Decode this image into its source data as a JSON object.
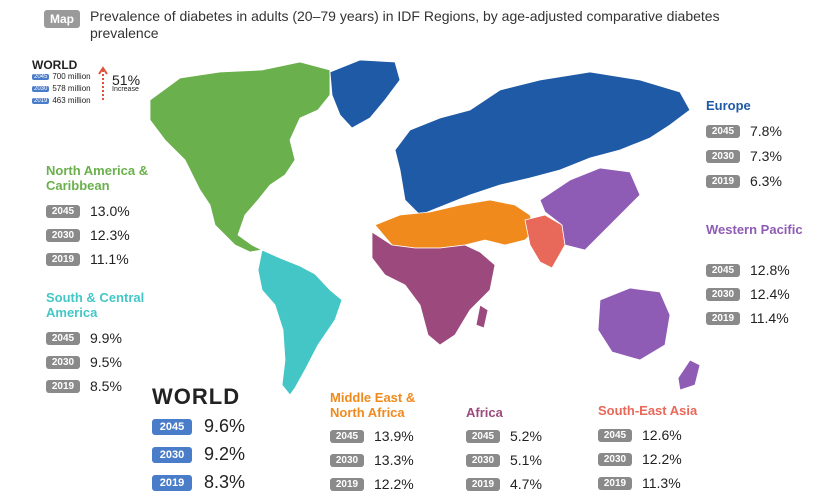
{
  "header": {
    "badge": "Map",
    "title": "Prevalence of diabetes in adults (20–79 years) in IDF Regions, by age-adjusted comparative diabetes prevalence"
  },
  "world_mini": {
    "title": "WORLD",
    "rows": [
      {
        "year": "2045",
        "value": "700 million"
      },
      {
        "year": "2030",
        "value": "578 million"
      },
      {
        "year": "2019",
        "value": "463 million"
      }
    ],
    "increase_pct": "51%",
    "increase_label": "Increase"
  },
  "regions": {
    "north_america": {
      "name": "North America & Caribbean",
      "color": "#6ab04c",
      "rows": [
        {
          "year": "2045",
          "value": "13.0%"
        },
        {
          "year": "2030",
          "value": "12.3%"
        },
        {
          "year": "2019",
          "value": "11.1%"
        }
      ]
    },
    "south_central_america": {
      "name": "South & Central America",
      "color": "#45c6c6",
      "rows": [
        {
          "year": "2045",
          "value": "9.9%"
        },
        {
          "year": "2030",
          "value": "9.5%"
        },
        {
          "year": "2019",
          "value": "8.5%"
        }
      ]
    },
    "europe": {
      "name": "Europe",
      "color": "#1f5aa6",
      "rows": [
        {
          "year": "2045",
          "value": "7.8%"
        },
        {
          "year": "2030",
          "value": "7.3%"
        },
        {
          "year": "2019",
          "value": "6.3%"
        }
      ]
    },
    "western_pacific": {
      "name": "Western Pacific",
      "color": "#8e5bb5",
      "rows": [
        {
          "year": "2045",
          "value": "12.8%"
        },
        {
          "year": "2030",
          "value": "12.4%"
        },
        {
          "year": "2019",
          "value": "11.4%"
        }
      ]
    },
    "mena": {
      "name": "Middle East & North Africa",
      "color": "#f08a1c",
      "rows": [
        {
          "year": "2045",
          "value": "13.9%"
        },
        {
          "year": "2030",
          "value": "13.3%"
        },
        {
          "year": "2019",
          "value": "12.2%"
        }
      ]
    },
    "africa": {
      "name": "Africa",
      "color": "#9c4a7d",
      "rows": [
        {
          "year": "2045",
          "value": "5.2%"
        },
        {
          "year": "2030",
          "value": "5.1%"
        },
        {
          "year": "2019",
          "value": "4.7%"
        }
      ]
    },
    "sea": {
      "name": "South-East Asia",
      "color": "#e8685a",
      "rows": [
        {
          "year": "2045",
          "value": "12.6%"
        },
        {
          "year": "2030",
          "value": "12.2%"
        },
        {
          "year": "2019",
          "value": "11.3%"
        }
      ]
    }
  },
  "world_big": {
    "title": "WORLD",
    "rows": [
      {
        "year": "2045",
        "value": "9.6%"
      },
      {
        "year": "2030",
        "value": "9.2%"
      },
      {
        "year": "2019",
        "value": "8.3%"
      }
    ]
  }
}
